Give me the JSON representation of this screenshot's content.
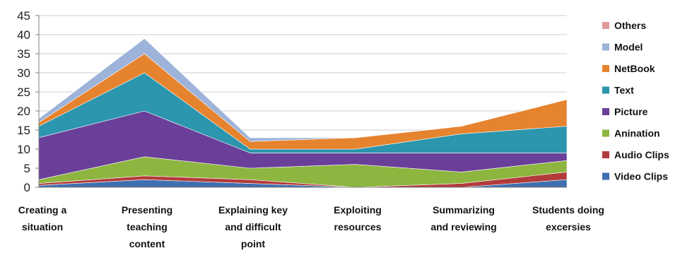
{
  "chart_data": {
    "type": "area",
    "stacked": true,
    "title": "",
    "xlabel": "",
    "ylabel": "",
    "ylim": [
      0,
      45
    ],
    "yticks": [
      0,
      5,
      10,
      15,
      20,
      25,
      30,
      35,
      40,
      45
    ],
    "grid": true,
    "legend_position": "right",
    "categories": [
      [
        "Creating a",
        "situation"
      ],
      [
        "Presenting",
        "teaching",
        "content"
      ],
      [
        "Explaining key",
        "and difficult",
        "point"
      ],
      [
        "Exploiting",
        "resources"
      ],
      [
        "Summarizing",
        "and reviewing"
      ],
      [
        "Students doing",
        "excersies"
      ]
    ],
    "series": [
      {
        "name": "Video Clips",
        "color": "#3f6fb0",
        "values": [
          0.5,
          2,
          1,
          0,
          0,
          2
        ]
      },
      {
        "name": "Audio Clips",
        "color": "#b33b3b",
        "values": [
          0.5,
          1,
          1,
          0,
          1,
          2
        ]
      },
      {
        "name": "Anination",
        "color": "#8db53f",
        "values": [
          1,
          5,
          3,
          6,
          3,
          3
        ]
      },
      {
        "name": "Picture",
        "color": "#6a3f99",
        "values": [
          11,
          12,
          4,
          3,
          5,
          2
        ]
      },
      {
        "name": "Text",
        "color": "#2b96ad",
        "values": [
          3,
          10,
          1,
          1,
          5,
          7
        ]
      },
      {
        "name": "NetBook",
        "color": "#e6832e",
        "values": [
          1,
          5,
          2,
          3,
          2,
          7
        ]
      },
      {
        "name": "Model",
        "color": "#9db3d9",
        "values": [
          1,
          4,
          1,
          0,
          0,
          0
        ]
      },
      {
        "name": "Others",
        "color": "#e09a9a",
        "values": [
          0,
          0,
          0,
          0,
          0,
          0
        ]
      }
    ]
  }
}
